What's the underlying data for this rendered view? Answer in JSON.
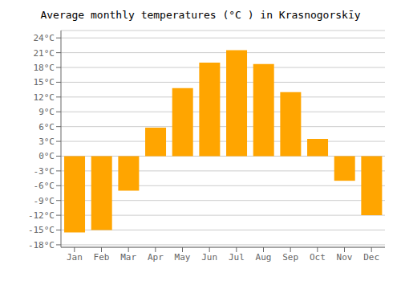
{
  "chart_data": {
    "type": "bar",
    "title": "Average monthly temperatures (°C ) in Krasnogorskīy",
    "categories": [
      "Jan",
      "Feb",
      "Mar",
      "Apr",
      "May",
      "Jun",
      "Jul",
      "Aug",
      "Sep",
      "Oct",
      "Nov",
      "Dec"
    ],
    "values": [
      -15.5,
      -15.0,
      -7.0,
      5.8,
      13.8,
      19.0,
      21.5,
      18.7,
      13.0,
      3.5,
      -5.0,
      -12.0
    ],
    "color": "#FFA500",
    "ylim": [
      -18.5,
      25.5
    ],
    "yticks": [
      {
        "value": -18,
        "label": "-18°C"
      },
      {
        "value": -15,
        "label": "-15°C"
      },
      {
        "value": -12,
        "label": "-12°C"
      },
      {
        "value": -9,
        "label": "-9°C"
      },
      {
        "value": -6,
        "label": "-6°C"
      },
      {
        "value": -3,
        "label": "-3°C"
      },
      {
        "value": 0,
        "label": "0°C"
      },
      {
        "value": 3,
        "label": "3°C"
      },
      {
        "value": 6,
        "label": "6°C"
      },
      {
        "value": 9,
        "label": "9°C"
      },
      {
        "value": 12,
        "label": "12°C"
      },
      {
        "value": 15,
        "label": "15°C"
      },
      {
        "value": 18,
        "label": "18°C"
      },
      {
        "value": 21,
        "label": "21°C"
      },
      {
        "value": 24,
        "label": "24°C"
      }
    ],
    "grid": true
  }
}
